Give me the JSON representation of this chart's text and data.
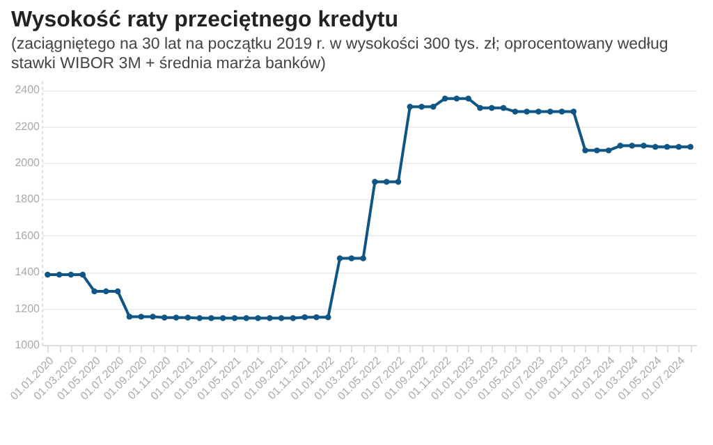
{
  "chart_data": {
    "type": "line",
    "title": "Wysokość raty przeciętnego kredytu",
    "subtitle": "(zaciągniętego na 30 lat na początku 2019 r. w wysokości 300 tys. zł; oprocentowany według stawki WIBOR 3M + średnia marża banków)",
    "categories": [
      "01.01.2020",
      null,
      "01.03.2020",
      null,
      "01.05.2020",
      null,
      "01.07.2020",
      null,
      "01.09.2020",
      null,
      "01.11.2020",
      null,
      "01.01.2021",
      null,
      "01.03.2021",
      null,
      "01.05.2021",
      null,
      "01.07.2021",
      null,
      "01.09.2021",
      null,
      "01.11.2021",
      null,
      "01.01.2022",
      null,
      "01.03.2022",
      null,
      "01.05.2022",
      null,
      "01.07.2022",
      null,
      "01.09.2022",
      null,
      "01.11.2022",
      null,
      "01.01.2023",
      null,
      "01.03.2023",
      null,
      "01.05.2023",
      null,
      "01.07.2023",
      null,
      "01.09.2023",
      null,
      "01.11.2023",
      null,
      "01.01.2024",
      null,
      "01.03.2024",
      null,
      "01.05.2024",
      null,
      "01.07.2024",
      null
    ],
    "series": [
      {
        "color": "#0f5585",
        "values": [
          1385,
          1385,
          1385,
          1385,
          1294,
          1294,
          1294,
          1155,
          1155,
          1155,
          1150,
          1150,
          1150,
          1147,
          1147,
          1147,
          1147,
          1147,
          1147,
          1147,
          1147,
          1147,
          1152,
          1152,
          1152,
          1475,
          1475,
          1475,
          1895,
          1895,
          1895,
          2307,
          2307,
          2307,
          2352,
          2352,
          2352,
          2300,
          2300,
          2300,
          2280,
          2280,
          2280,
          2280,
          2280,
          2280,
          2067,
          2067,
          2067,
          2093,
          2093,
          2093,
          2087,
          2087,
          2087,
          2087
        ]
      }
    ],
    "ylim": [
      1000,
      2450
    ],
    "yticks": [
      1000,
      1200,
      1400,
      1600,
      1800,
      2000,
      2200,
      2400
    ],
    "grid": "y",
    "marker": "circle",
    "line_style": "solid"
  }
}
